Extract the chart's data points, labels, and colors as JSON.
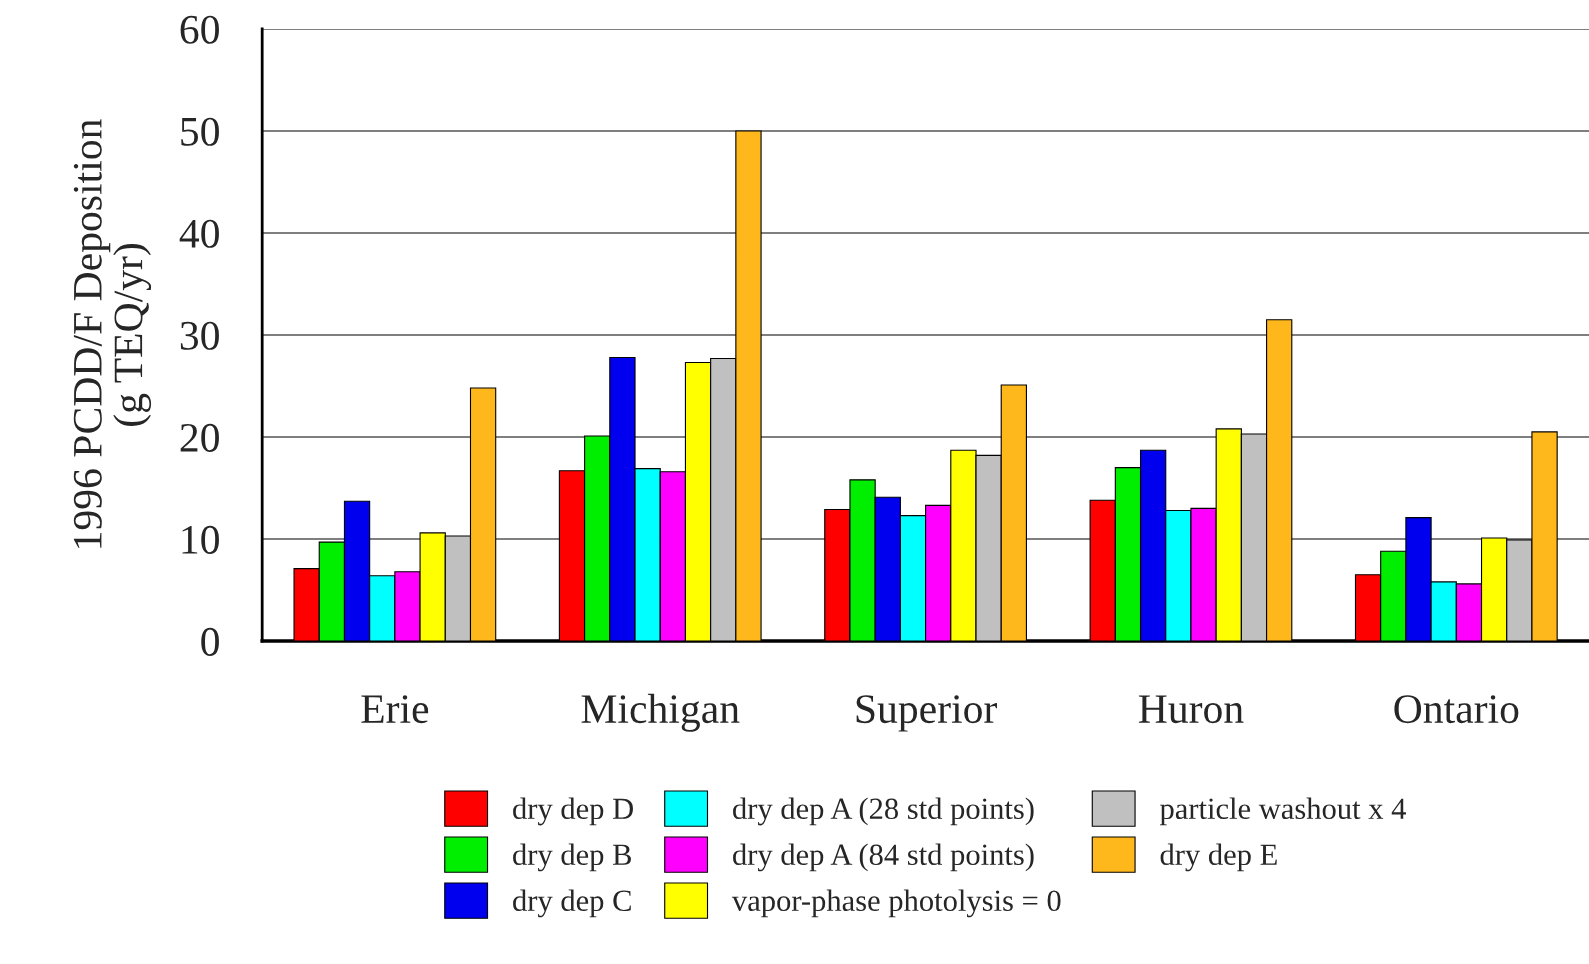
{
  "chart_data": {
    "type": "bar",
    "ylabel": "1996 PCDD/F Deposition\n(g TEQ/yr)",
    "categories": [
      "Erie",
      "Michigan",
      "Superior",
      "Huron",
      "Ontario"
    ],
    "series": [
      {
        "name": "dry dep D",
        "color": "#ff0000",
        "values": [
          7.1,
          16.7,
          12.9,
          13.8,
          6.5
        ]
      },
      {
        "name": "dry dep B",
        "color": "#00ee00",
        "values": [
          9.7,
          20.1,
          15.8,
          17.0,
          8.8
        ]
      },
      {
        "name": "dry dep C",
        "color": "#0000ee",
        "values": [
          13.7,
          27.8,
          14.1,
          18.7,
          12.1
        ]
      },
      {
        "name": "dry dep A (28 std points)",
        "color": "#00ffff",
        "values": [
          6.4,
          16.9,
          12.3,
          12.8,
          5.8
        ]
      },
      {
        "name": "dry dep A (84 std points)",
        "color": "#ff00ff",
        "values": [
          6.8,
          16.6,
          13.3,
          13.0,
          5.6
        ]
      },
      {
        "name": "vapor-phase photolysis = 0",
        "color": "#ffff00",
        "values": [
          10.6,
          27.3,
          18.7,
          20.8,
          10.1
        ]
      },
      {
        "name": "particle washout x 4",
        "color": "#c0c0c0",
        "values": [
          10.3,
          27.7,
          18.2,
          20.3,
          9.9
        ]
      },
      {
        "name": "dry dep E",
        "color": "#ffb81c",
        "values": [
          24.8,
          50.0,
          25.1,
          31.5,
          20.5
        ]
      }
    ],
    "ylim": [
      0,
      60
    ],
    "yticks": [
      0,
      10,
      20,
      30,
      40,
      50,
      60
    ],
    "grid": "y",
    "legend": "bottom"
  }
}
